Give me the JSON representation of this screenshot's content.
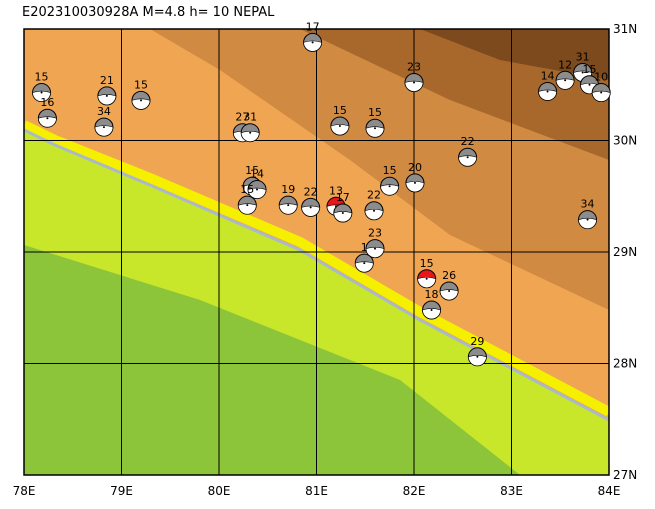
{
  "header": {
    "title": "E202310030928A  M=4.8  h= 10 NEPAL"
  },
  "map": {
    "xlim": [
      78,
      84
    ],
    "ylim": [
      27,
      31
    ],
    "xticks": [
      {
        "value": 78,
        "label": "78E"
      },
      {
        "value": 79,
        "label": "79E"
      },
      {
        "value": 80,
        "label": "80E"
      },
      {
        "value": 81,
        "label": "81E"
      },
      {
        "value": 82,
        "label": "82E"
      },
      {
        "value": 83,
        "label": "83E"
      },
      {
        "value": 84,
        "label": "84E"
      }
    ],
    "yticks": [
      {
        "value": 27,
        "label": "27N"
      },
      {
        "value": 28,
        "label": "28N"
      },
      {
        "value": 29,
        "label": "29N"
      },
      {
        "value": 30,
        "label": "30N"
      },
      {
        "value": 31,
        "label": "31N"
      }
    ],
    "events": [
      {
        "lon": 78.18,
        "lat": 30.43,
        "label": "15",
        "red": false
      },
      {
        "lon": 78.24,
        "lat": 30.2,
        "label": "16",
        "red": false
      },
      {
        "lon": 78.85,
        "lat": 30.4,
        "label": "21",
        "red": false
      },
      {
        "lon": 78.82,
        "lat": 30.12,
        "label": "34",
        "red": false
      },
      {
        "lon": 79.2,
        "lat": 30.36,
        "label": "15",
        "red": false
      },
      {
        "lon": 80.96,
        "lat": 30.88,
        "label": "17",
        "red": false
      },
      {
        "lon": 82.0,
        "lat": 30.52,
        "label": "23",
        "red": false
      },
      {
        "lon": 80.24,
        "lat": 30.07,
        "label": "27",
        "red": false
      },
      {
        "lon": 80.32,
        "lat": 30.07,
        "label": "31",
        "red": false
      },
      {
        "lon": 81.24,
        "lat": 30.13,
        "label": "15",
        "red": false
      },
      {
        "lon": 81.6,
        "lat": 30.11,
        "label": "15",
        "red": false
      },
      {
        "lon": 82.55,
        "lat": 29.85,
        "label": "22",
        "red": false
      },
      {
        "lon": 81.75,
        "lat": 29.59,
        "label": "15",
        "red": false
      },
      {
        "lon": 82.01,
        "lat": 29.62,
        "label": "20",
        "red": false
      },
      {
        "lon": 80.34,
        "lat": 29.59,
        "label": "15",
        "red": false
      },
      {
        "lon": 80.39,
        "lat": 29.56,
        "label": "14",
        "red": false
      },
      {
        "lon": 80.29,
        "lat": 29.42,
        "label": "15",
        "red": false
      },
      {
        "lon": 80.71,
        "lat": 29.42,
        "label": "19",
        "red": false
      },
      {
        "lon": 80.94,
        "lat": 29.4,
        "label": "22",
        "red": false
      },
      {
        "lon": 81.2,
        "lat": 29.41,
        "label": "13",
        "red": true
      },
      {
        "lon": 81.27,
        "lat": 29.35,
        "label": "17",
        "red": false
      },
      {
        "lon": 81.59,
        "lat": 29.37,
        "label": "22",
        "red": false
      },
      {
        "lon": 81.6,
        "lat": 29.03,
        "label": "23",
        "red": false
      },
      {
        "lon": 81.49,
        "lat": 28.9,
        "label": "1",
        "red": false
      },
      {
        "lon": 82.13,
        "lat": 28.76,
        "label": "15",
        "red": true
      },
      {
        "lon": 82.36,
        "lat": 28.65,
        "label": "26",
        "red": false
      },
      {
        "lon": 82.18,
        "lat": 28.48,
        "label": "18",
        "red": false
      },
      {
        "lon": 82.65,
        "lat": 28.06,
        "label": "29",
        "red": false
      },
      {
        "lon": 83.78,
        "lat": 29.29,
        "label": "34",
        "red": false
      },
      {
        "lon": 83.73,
        "lat": 30.61,
        "label": "31",
        "red": false
      },
      {
        "lon": 83.55,
        "lat": 30.54,
        "label": "12",
        "red": false
      },
      {
        "lon": 83.37,
        "lat": 30.44,
        "label": "14",
        "red": false
      },
      {
        "lon": 83.8,
        "lat": 30.5,
        "label": "15",
        "red": false
      },
      {
        "lon": 83.92,
        "lat": 30.43,
        "label": "10",
        "red": false
      }
    ]
  }
}
